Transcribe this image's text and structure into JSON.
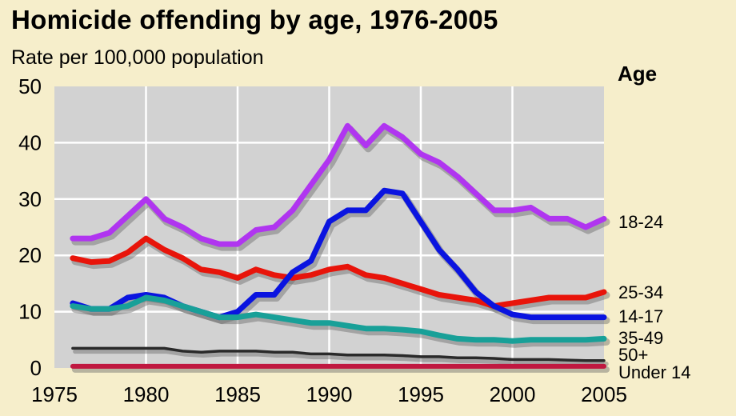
{
  "chart_data": {
    "type": "line",
    "title": "Homicide offending by age, 1976-2005",
    "ylabel": "Rate per 100,000 population",
    "legend_title": "Age",
    "xlim": [
      1975,
      2005
    ],
    "ylim": [
      0,
      50
    ],
    "x_ticks": [
      "1975",
      "1980",
      "1985",
      "1990",
      "1995",
      "2000",
      "2005"
    ],
    "y_ticks": [
      "0",
      "10",
      "20",
      "30",
      "40",
      "50"
    ],
    "grid": true,
    "x": [
      1976,
      1977,
      1978,
      1979,
      1980,
      1981,
      1982,
      1983,
      1984,
      1985,
      1986,
      1987,
      1988,
      1989,
      1990,
      1991,
      1992,
      1993,
      1994,
      1995,
      1996,
      1997,
      1998,
      1999,
      2000,
      2001,
      2002,
      2003,
      2004,
      2005
    ],
    "series": [
      {
        "name": "18-24",
        "color": "#b035f0",
        "values": [
          23,
          23,
          24,
          27,
          30,
          26.5,
          25,
          23,
          22,
          22,
          24.5,
          25,
          28,
          32.5,
          37,
          43,
          39.5,
          43,
          41,
          38,
          36.5,
          34,
          31,
          28,
          28,
          28.5,
          26.5,
          26.5,
          25,
          26.5
        ]
      },
      {
        "name": "25-34",
        "color": "#e8140a",
        "values": [
          19.5,
          18.8,
          19,
          20.5,
          23,
          21,
          19.5,
          17.5,
          17,
          16,
          17.5,
          16.5,
          16,
          16.5,
          17.5,
          18,
          16.5,
          16,
          15,
          14,
          13,
          12.5,
          12,
          11,
          11.5,
          12,
          12.5,
          12.5,
          12.5,
          13.5
        ]
      },
      {
        "name": "14-17",
        "color": "#0a14e0",
        "values": [
          11.5,
          10.5,
          10.5,
          12.5,
          13,
          12.5,
          11,
          10,
          9,
          10,
          13,
          13,
          17,
          19,
          26,
          28,
          28,
          31.5,
          31,
          26,
          21,
          17.5,
          13.5,
          11,
          9.5,
          9,
          9,
          9,
          9,
          9
        ]
      },
      {
        "name": "35-49",
        "color": "#18a098",
        "values": [
          11,
          10.5,
          10.5,
          11,
          12.5,
          12,
          11,
          10,
          9,
          9,
          9.5,
          9,
          8.5,
          8,
          8,
          7.5,
          7,
          7,
          6.8,
          6.5,
          5.8,
          5.2,
          5,
          5,
          4.8,
          5,
          5,
          5,
          5,
          5.2
        ]
      },
      {
        "name": "50+",
        "color": "#2a2a2a",
        "values": [
          3.5,
          3.5,
          3.5,
          3.5,
          3.5,
          3.5,
          3,
          2.8,
          3,
          3,
          3,
          2.8,
          2.8,
          2.5,
          2.5,
          2.3,
          2.3,
          2.3,
          2.2,
          2,
          2,
          1.8,
          1.8,
          1.7,
          1.5,
          1.5,
          1.5,
          1.4,
          1.3,
          1.3
        ]
      },
      {
        "name": "Under 14",
        "color": "#c01840",
        "values": [
          0.3,
          0.3,
          0.3,
          0.3,
          0.3,
          0.3,
          0.3,
          0.3,
          0.3,
          0.3,
          0.3,
          0.3,
          0.3,
          0.3,
          0.3,
          0.3,
          0.3,
          0.3,
          0.3,
          0.3,
          0.3,
          0.3,
          0.3,
          0.3,
          0.3,
          0.3,
          0.3,
          0.3,
          0.3,
          0.3
        ]
      }
    ],
    "legend_placement": "right, at line ends"
  }
}
